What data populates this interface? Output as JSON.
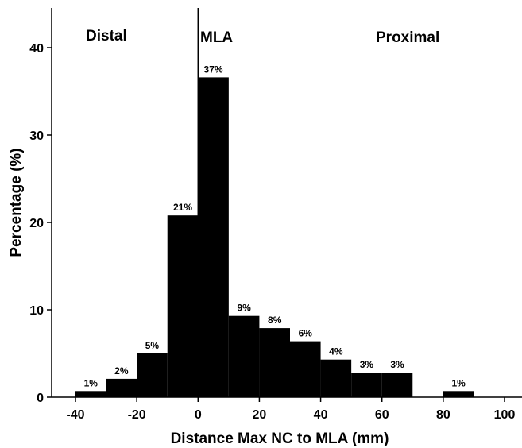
{
  "chart_data": {
    "type": "bar",
    "bins": [
      {
        "x0": -40,
        "x1": -30,
        "value": 0.7,
        "label": "1%"
      },
      {
        "x0": -30,
        "x1": -20,
        "value": 2.1,
        "label": "2%"
      },
      {
        "x0": -20,
        "x1": -10,
        "value": 5.0,
        "label": "5%"
      },
      {
        "x0": -10,
        "x1": 0,
        "value": 20.8,
        "label": "21%"
      },
      {
        "x0": 0,
        "x1": 10,
        "value": 36.6,
        "label": "37%"
      },
      {
        "x0": 10,
        "x1": 20,
        "value": 9.3,
        "label": "9%"
      },
      {
        "x0": 20,
        "x1": 30,
        "value": 7.9,
        "label": "8%"
      },
      {
        "x0": 30,
        "x1": 40,
        "value": 6.4,
        "label": "6%"
      },
      {
        "x0": 40,
        "x1": 50,
        "value": 4.3,
        "label": "4%"
      },
      {
        "x0": 50,
        "x1": 60,
        "value": 2.8,
        "label": "3%"
      },
      {
        "x0": 60,
        "x1": 70,
        "value": 2.8,
        "label": "3%"
      },
      {
        "x0": 80,
        "x1": 90,
        "value": 0.7,
        "label": "1%"
      }
    ],
    "xlabel": "Distance Max NC to MLA (mm)",
    "ylabel": "Percentage (%)",
    "xlim": [
      -50,
      105
    ],
    "ylim": [
      0,
      44
    ],
    "xticks": [
      -40,
      -20,
      0,
      20,
      40,
      60,
      80,
      100
    ],
    "yticks": [
      0,
      10,
      20,
      30,
      40
    ],
    "reference_line_x": 0,
    "region_labels": {
      "left": "Distal",
      "center": "MLA",
      "right": "Proximal"
    },
    "grid": false
  }
}
